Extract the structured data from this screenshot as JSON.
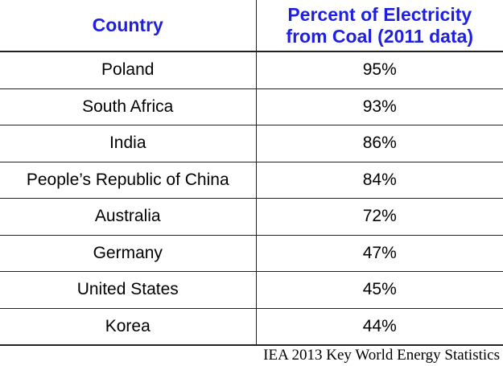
{
  "table": {
    "headers": [
      "Country",
      "Percent of Electricity\nfrom Coal (2011 data)"
    ],
    "rows": [
      {
        "country": "Poland",
        "percent": "95%"
      },
      {
        "country": "South Africa",
        "percent": "93%"
      },
      {
        "country": "India",
        "percent": "86%"
      },
      {
        "country": "People’s Republic of China",
        "percent": "84%"
      },
      {
        "country": "Australia",
        "percent": "72%"
      },
      {
        "country": "Germany",
        "percent": "47%"
      },
      {
        "country": "United States",
        "percent": "45%"
      },
      {
        "country": "Korea",
        "percent": "44%"
      }
    ]
  },
  "source": "IEA 2013 Key World Energy Statistics",
  "colors": {
    "header_text": "#1f1fe0",
    "body_text": "#000000",
    "rules": "#222222"
  }
}
